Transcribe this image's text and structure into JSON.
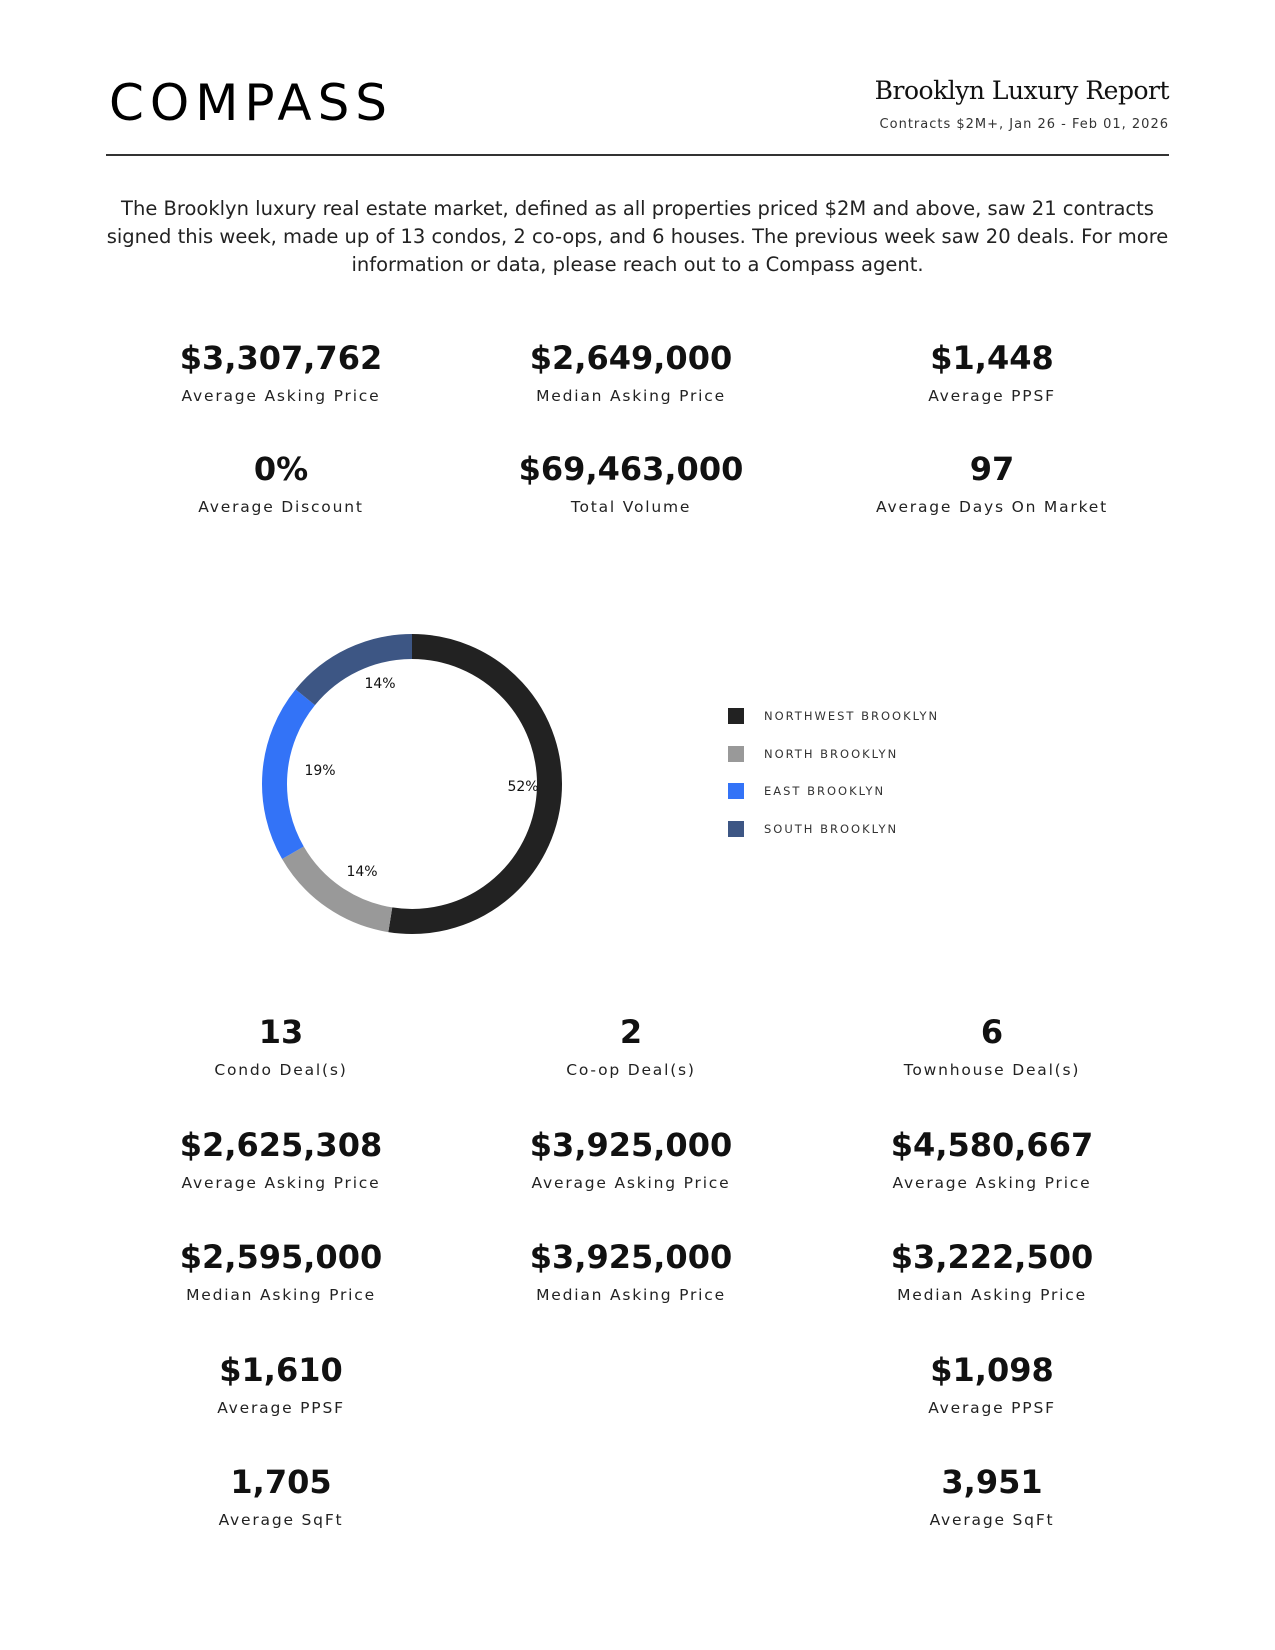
{
  "header": {
    "logo": "COMPASS",
    "title": "Brooklyn Luxury Report",
    "subtitle": "Contracts $2M+, Jan 26 - Feb 01, 2026"
  },
  "intro": "The Brooklyn luxury real estate market, defined as all properties priced $2M and above, saw 21 contracts signed this week, made up of 13 condos, 2 co-ops, and 6 houses. The previous week saw 20 deals. For more information or data, please reach out to a Compass agent.",
  "summary": [
    {
      "value": "$3,307,762",
      "label": "Average Asking Price"
    },
    {
      "value": "$2,649,000",
      "label": "Median Asking Price"
    },
    {
      "value": "$1,448",
      "label": "Average PPSF"
    },
    {
      "value": "0%",
      "label": "Average Discount"
    },
    {
      "value": "$69,463,000",
      "label": "Total Volume"
    },
    {
      "value": "97",
      "label": "Average Days On Market"
    }
  ],
  "chart_data": {
    "type": "pie",
    "donut": true,
    "legend_position": "right",
    "categories": [
      "NORTHWEST BROOKLYN",
      "NORTH BROOKLYN",
      "EAST BROOKLYN",
      "SOUTH BROOKLYN"
    ],
    "values": [
      52,
      14,
      19,
      14
    ],
    "data_labels": [
      "52%",
      "14%",
      "19%",
      "14%"
    ],
    "colors": [
      "#222222",
      "#999999",
      "#3373f7",
      "#3d5684"
    ]
  },
  "breakdown": {
    "condo": [
      {
        "value": "13",
        "label": "Condo Deal(s)"
      },
      {
        "value": "$2,625,308",
        "label": "Average Asking Price"
      },
      {
        "value": "$2,595,000",
        "label": "Median Asking Price"
      },
      {
        "value": "$1,610",
        "label": "Average PPSF"
      },
      {
        "value": "1,705",
        "label": "Average SqFt"
      }
    ],
    "coop": [
      {
        "value": "2",
        "label": "Co-op Deal(s)"
      },
      {
        "value": "$3,925,000",
        "label": "Average Asking Price"
      },
      {
        "value": "$3,925,000",
        "label": "Median Asking Price"
      }
    ],
    "townhouse": [
      {
        "value": "6",
        "label": "Townhouse Deal(s)"
      },
      {
        "value": "$4,580,667",
        "label": "Average Asking Price"
      },
      {
        "value": "$3,222,500",
        "label": "Median Asking Price"
      },
      {
        "value": "$1,098",
        "label": "Average PPSF"
      },
      {
        "value": "3,951",
        "label": "Average SqFt"
      }
    ]
  }
}
